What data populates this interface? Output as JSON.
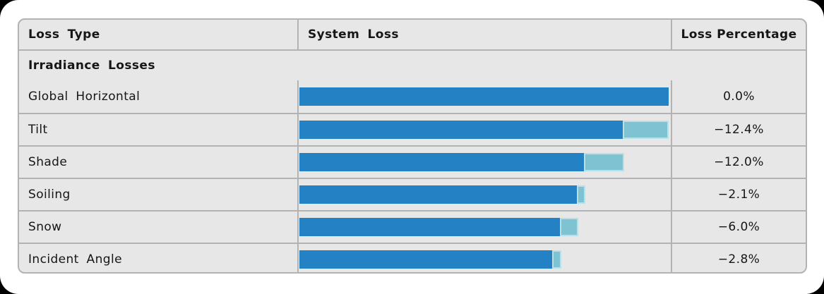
{
  "chart_data": {
    "type": "bar",
    "title": "",
    "section": "Irradiance Losses",
    "columns": [
      "Loss Type",
      "System Loss",
      "Loss Percentage"
    ],
    "categories": [
      "Global Horizontal",
      "Tilt",
      "Shade",
      "Soiling",
      "Snow",
      "Incident Angle"
    ],
    "series": [
      {
        "name": "remaining-after-loss-dark-bar",
        "values": [
          100,
          87.6,
          77.0,
          75.2,
          70.5,
          68.4
        ]
      },
      {
        "name": "remaining-before-loss-light-bar",
        "values": [
          100,
          100,
          88.0,
          77.4,
          75.6,
          71.0
        ]
      }
    ],
    "loss_percentage_labels": [
      "0.0%",
      "−12.4%",
      "−12.0%",
      "−2.1%",
      "−6.0%",
      "−2.8%"
    ],
    "xlim": [
      0,
      100
    ],
    "orientation": "horizontal",
    "legend": "none",
    "grid": "off"
  },
  "header": {
    "col1": "Loss Type",
    "col2": "System Loss",
    "col3": "Loss Percentage"
  },
  "section_title": "Irradiance Losses",
  "rows": [
    {
      "label": "Global Horizontal",
      "value": "0.0%",
      "dark_pct": 100,
      "light_pct": 100
    },
    {
      "label": "Tilt",
      "value": "−12.4%",
      "dark_pct": 87.6,
      "light_pct": 100
    },
    {
      "label": "Shade",
      "value": "−12.0%",
      "dark_pct": 77.0,
      "light_pct": 88.0
    },
    {
      "label": "Soiling",
      "value": "−2.1%",
      "dark_pct": 75.2,
      "light_pct": 77.4
    },
    {
      "label": "Snow",
      "value": "−6.0%",
      "dark_pct": 70.5,
      "light_pct": 75.6
    },
    {
      "label": "Incident Angle",
      "value": "−2.8%",
      "dark_pct": 68.4,
      "light_pct": 71.0
    }
  ],
  "colors": {
    "bar_dark": "#2481c4",
    "bar_light": "#7fc3d2",
    "bar_light_border": "#bcdfe7",
    "row_bg": "#e7e7e7",
    "table_border": "#b3b3b3",
    "text": "#161616",
    "card_bg": "#ffffff",
    "page_bg": "#000000"
  }
}
